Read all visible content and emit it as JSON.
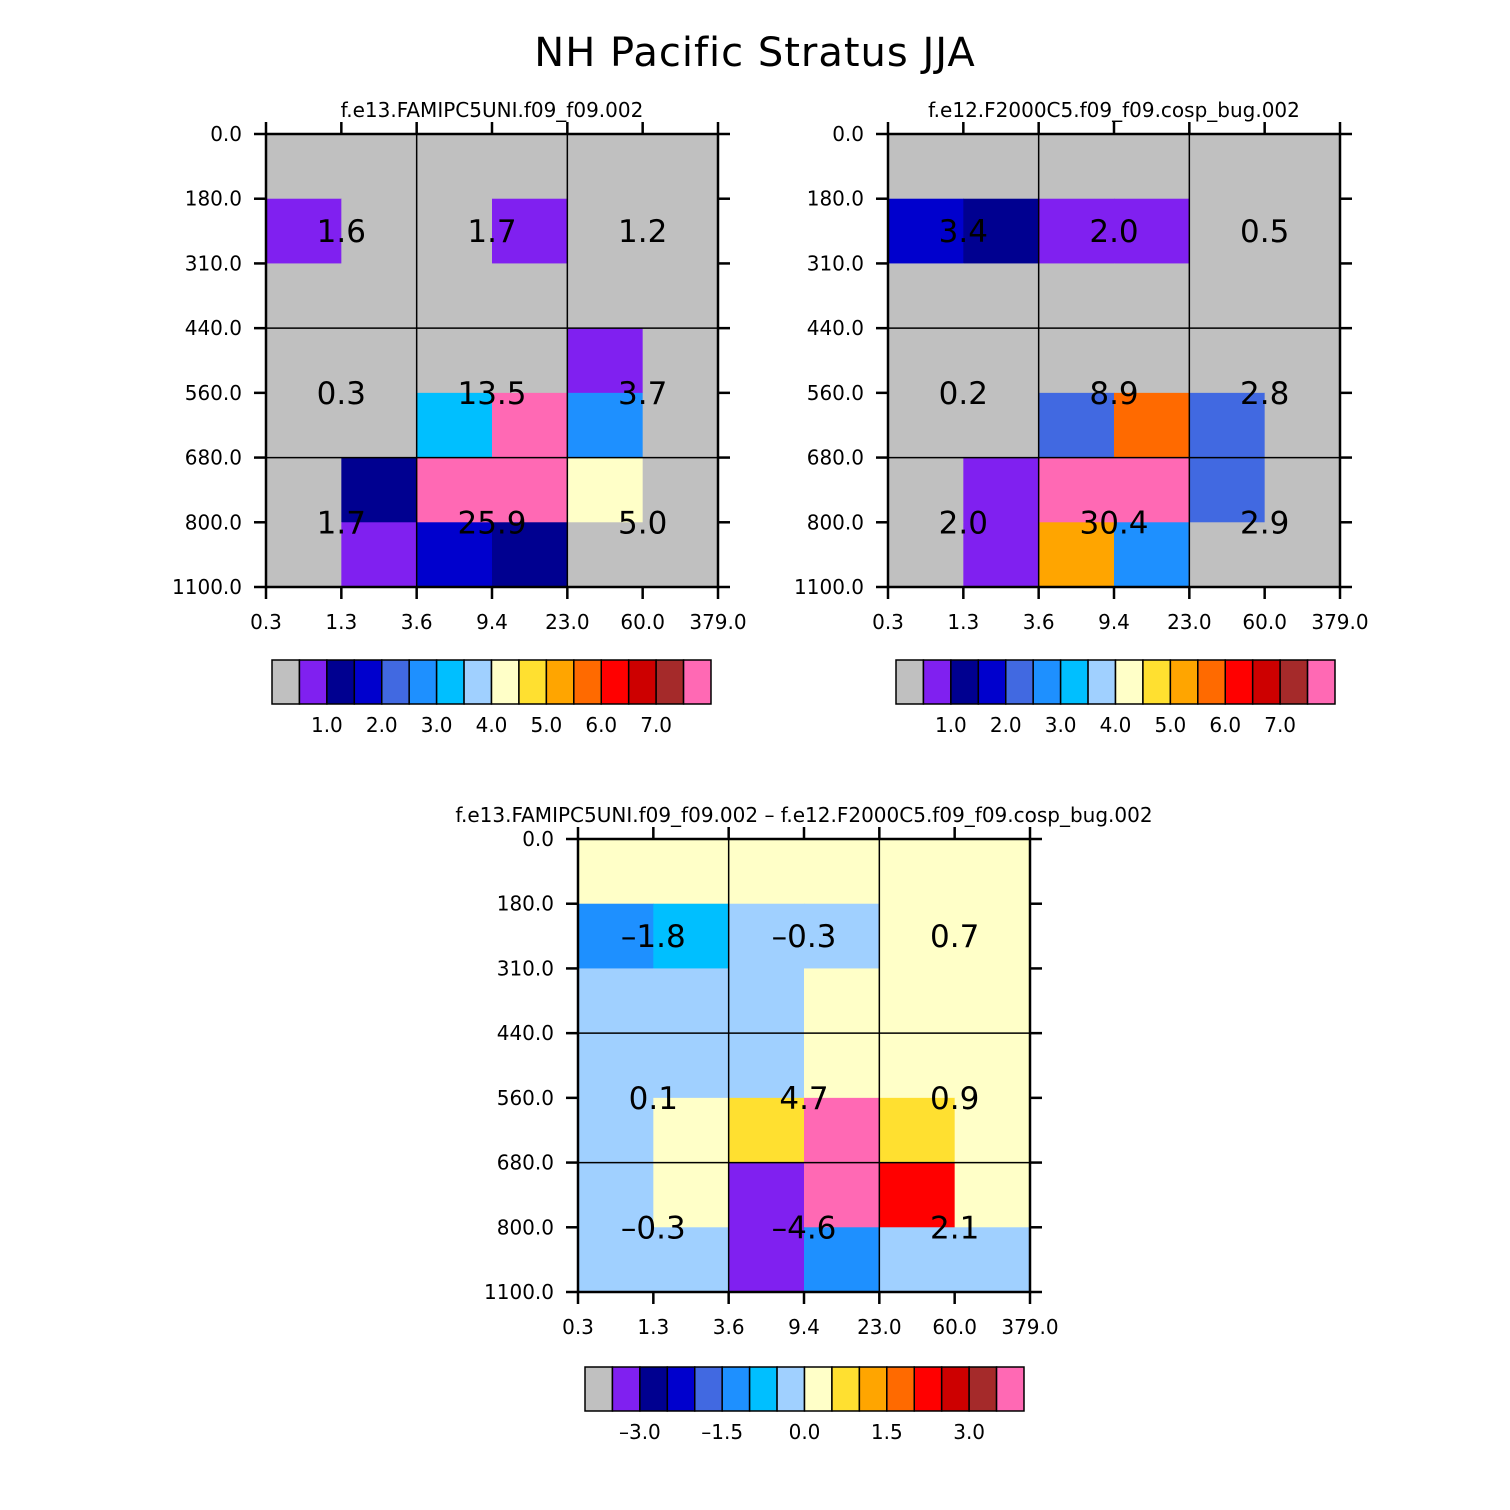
{
  "title": "NH Pacific Stratus JJA",
  "colors": [
    "#c0c0c0",
    "#8020f0",
    "#000090",
    "#0000cd",
    "#4169e1",
    "#1e90ff",
    "#00bfff",
    "#a0d0ff",
    "#ffffc8",
    "#ffe030",
    "#ffa500",
    "#ff6a00",
    "#ff0000",
    "#cd0000",
    "#a52a2a",
    "#ff69b4"
  ],
  "chart_data": [
    {
      "type": "heatmap",
      "title": "f.e13.FAMIPC5UNI.f09_f09.002",
      "xticks": [
        "0.3",
        "1.3",
        "3.6",
        "9.4",
        "23.0",
        "60.0",
        "379.0"
      ],
      "yticks": [
        "0.0",
        "180.0",
        "310.0",
        "440.0",
        "560.0",
        "680.0",
        "800.0",
        "1100.0"
      ],
      "cell_color_index": [
        [
          0,
          0,
          0,
          0,
          0,
          0
        ],
        [
          1,
          0,
          0,
          1,
          0,
          0
        ],
        [
          0,
          0,
          0,
          0,
          0,
          0
        ],
        [
          0,
          0,
          0,
          0,
          1,
          0
        ],
        [
          0,
          0,
          6,
          15,
          5,
          0
        ],
        [
          0,
          2,
          15,
          15,
          8,
          0
        ],
        [
          0,
          1,
          3,
          2,
          0,
          0
        ]
      ],
      "summary_values": [
        [
          "1.6",
          "1.7",
          "1.2"
        ],
        [
          "0.3",
          "13.5",
          "3.7"
        ],
        [
          "1.7",
          "25.9",
          "5.0"
        ]
      ],
      "colorbar_labels": [
        "1.0",
        "2.0",
        "3.0",
        "4.0",
        "5.0",
        "6.0",
        "7.0"
      ]
    },
    {
      "type": "heatmap",
      "title": "f.e12.F2000C5.f09_f09.cosp_bug.002",
      "xticks": [
        "0.3",
        "1.3",
        "3.6",
        "9.4",
        "23.0",
        "60.0",
        "379.0"
      ],
      "yticks": [
        "0.0",
        "180.0",
        "310.0",
        "440.0",
        "560.0",
        "680.0",
        "800.0",
        "1100.0"
      ],
      "cell_color_index": [
        [
          0,
          0,
          0,
          0,
          0,
          0
        ],
        [
          3,
          2,
          1,
          1,
          0,
          0
        ],
        [
          0,
          0,
          0,
          0,
          0,
          0
        ],
        [
          0,
          0,
          0,
          0,
          0,
          0
        ],
        [
          0,
          0,
          4,
          11,
          4,
          0
        ],
        [
          0,
          1,
          15,
          15,
          4,
          0
        ],
        [
          0,
          1,
          10,
          5,
          0,
          0
        ]
      ],
      "summary_values": [
        [
          "3.4",
          "2.0",
          "0.5"
        ],
        [
          "0.2",
          "8.9",
          "2.8"
        ],
        [
          "2.0",
          "30.4",
          "2.9"
        ]
      ],
      "colorbar_labels": [
        "1.0",
        "2.0",
        "3.0",
        "4.0",
        "5.0",
        "6.0",
        "7.0"
      ]
    },
    {
      "type": "heatmap",
      "title": "f.e13.FAMIPC5UNI.f09_f09.002 – f.e12.F2000C5.f09_f09.cosp_bug.002",
      "xticks": [
        "0.3",
        "1.3",
        "3.6",
        "9.4",
        "23.0",
        "60.0",
        "379.0"
      ],
      "yticks": [
        "0.0",
        "180.0",
        "310.0",
        "440.0",
        "560.0",
        "680.0",
        "800.0",
        "1100.0"
      ],
      "cell_color_index": [
        [
          8,
          8,
          8,
          8,
          8,
          8
        ],
        [
          5,
          6,
          7,
          7,
          8,
          8
        ],
        [
          7,
          7,
          7,
          8,
          8,
          8
        ],
        [
          7,
          7,
          7,
          8,
          8,
          8
        ],
        [
          7,
          8,
          9,
          15,
          9,
          8
        ],
        [
          7,
          8,
          1,
          15,
          12,
          8
        ],
        [
          7,
          7,
          1,
          5,
          7,
          7
        ]
      ],
      "summary_values": [
        [
          "–1.8",
          "–0.3",
          "0.7"
        ],
        [
          "0.1",
          "4.7",
          "0.9"
        ],
        [
          "–0.3",
          "–4.6",
          "2.1"
        ]
      ],
      "colorbar_labels": [
        "–3.0",
        "–1.5",
        "0.0",
        "1.5",
        "3.0"
      ]
    }
  ]
}
